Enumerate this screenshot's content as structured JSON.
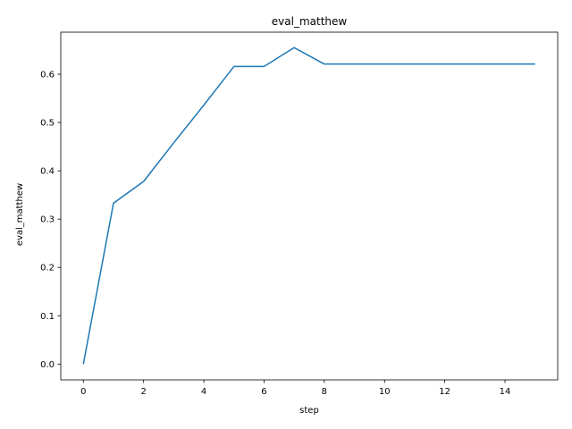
{
  "chart_data": {
    "type": "line",
    "title": "eval_matthew",
    "xlabel": "step",
    "ylabel": "eval_matthew",
    "xlim": [
      -0.75,
      15.75
    ],
    "ylim": [
      -0.0327,
      0.687
    ],
    "xticks": [
      0,
      2,
      4,
      6,
      8,
      10,
      12,
      14
    ],
    "xtick_labels": [
      "0",
      "2",
      "4",
      "6",
      "8",
      "10",
      "12",
      "14"
    ],
    "yticks": [
      0.0,
      0.1,
      0.2,
      0.3,
      0.4,
      0.5,
      0.6
    ],
    "ytick_labels": [
      "0.0",
      "0.1",
      "0.2",
      "0.3",
      "0.4",
      "0.5",
      "0.6"
    ],
    "grid": false,
    "series": [
      {
        "color": "#1f77b4",
        "x": [
          0,
          1,
          2,
          3,
          4,
          5,
          6,
          7,
          8,
          9,
          10,
          11,
          12,
          13,
          14,
          15
        ],
        "y": [
          0.0,
          0.333,
          0.378,
          0.458,
          0.536,
          0.616,
          0.616,
          0.655,
          0.621,
          0.621,
          0.621,
          0.621,
          0.621,
          0.621,
          0.621,
          0.621
        ]
      }
    ]
  }
}
